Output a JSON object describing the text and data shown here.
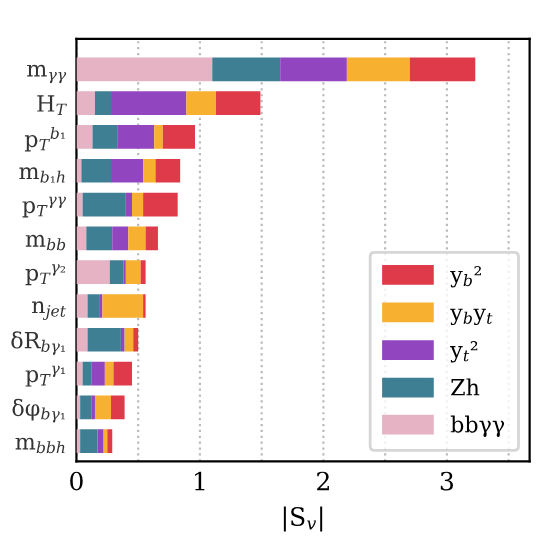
{
  "chart_data": {
    "type": "bar",
    "orientation": "horizontal",
    "stacked": true,
    "categories": [
      "m$_{γγ}$",
      "H$_{T}$",
      "p$_{T}$$^{b₁}$",
      "m$_{b₁h}$",
      "p$_{T}$$^{γγ}$",
      "m$_{bb}$",
      "p$_{T}$$^{γ₂}$",
      "n$_{jet}$",
      "δR$_{bγ₁}$",
      "p$_{T}$$^{γ₁}$",
      "δφ$_{bγ₁}$",
      "m$_{bbh}$"
    ],
    "series": [
      {
        "name": "bbγγ",
        "color": "#e6b3c4",
        "values": [
          1.1,
          0.15,
          0.13,
          0.04,
          0.05,
          0.08,
          0.27,
          0.09,
          0.09,
          0.05,
          0.03,
          0.03
        ]
      },
      {
        "name": "Zh",
        "color": "#3f7f93",
        "values": [
          0.55,
          0.13,
          0.2,
          0.24,
          0.35,
          0.21,
          0.11,
          0.1,
          0.27,
          0.07,
          0.09,
          0.14
        ]
      },
      {
        "name": "y$_{t}$²",
        "color": "#9146bf",
        "values": [
          0.54,
          0.61,
          0.3,
          0.26,
          0.05,
          0.13,
          0.02,
          0.02,
          0.03,
          0.11,
          0.03,
          0.05
        ]
      },
      {
        "name": "y$_{b}$y$_{t}$",
        "color": "#f7b02f",
        "values": [
          0.51,
          0.24,
          0.07,
          0.1,
          0.09,
          0.14,
          0.12,
          0.33,
          0.07,
          0.07,
          0.13,
          0.03
        ]
      },
      {
        "name": "y$_{b}$²",
        "color": "#df3a4a",
        "values": [
          0.53,
          0.36,
          0.26,
          0.2,
          0.28,
          0.1,
          0.04,
          0.02,
          0.04,
          0.15,
          0.11,
          0.04
        ]
      }
    ],
    "xlabel": "|S$_{v}$|",
    "xlim": [
      0,
      3.67
    ],
    "xticks": [
      0,
      {
        "value": 0.5,
        "label": null
      },
      1,
      {
        "value": 1.5,
        "label": null
      },
      2,
      {
        "value": 2.5,
        "label": null
      },
      3,
      {
        "value": 3.5,
        "label": null
      }
    ],
    "grid": "x",
    "legend": "bottom right"
  }
}
